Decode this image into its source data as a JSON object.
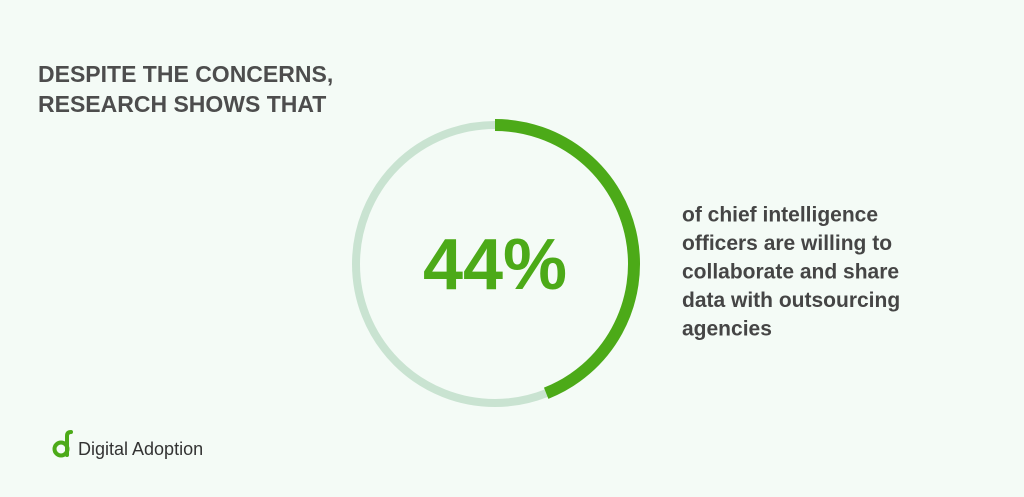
{
  "chart_data": {
    "type": "donut",
    "title": [
      "DESPITE THE CONCERNS,",
      "RESEARCH SHOWS THAT"
    ],
    "values": [
      44
    ],
    "value_labels": [
      "44%"
    ],
    "ylim": [
      0,
      100
    ],
    "color": "#4caa18",
    "track_color": "#c9e3d1",
    "description": [
      "of chief intelligence",
      "officers are willing to",
      "collaborate and share",
      "data with outsourcing",
      "agencies"
    ]
  },
  "footer": {
    "brand": "Digital Adoption"
  }
}
